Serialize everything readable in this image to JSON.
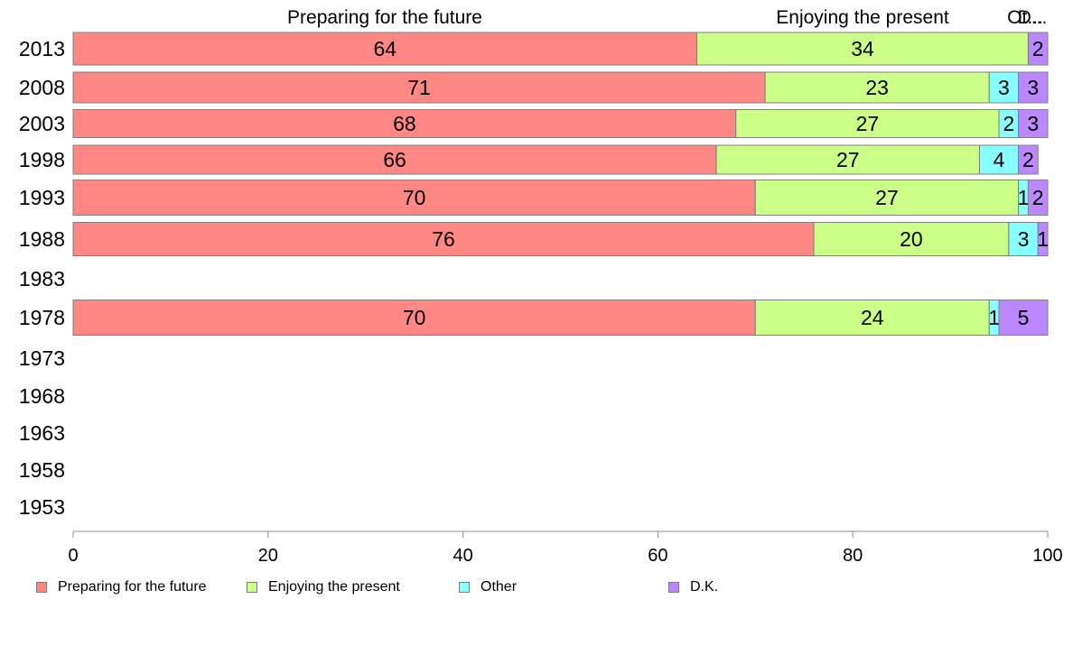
{
  "chart_data": {
    "type": "bar",
    "orientation": "horizontal",
    "stacked": true,
    "categories": [
      "2013",
      "2008",
      "2003",
      "1998",
      "1993",
      "1988",
      "1983",
      "1978",
      "1973",
      "1968",
      "1963",
      "1958",
      "1953"
    ],
    "series": [
      {
        "name": "Preparing for the future",
        "color": "#ff8884",
        "values": [
          64,
          71,
          68,
          66,
          70,
          76,
          null,
          70,
          null,
          null,
          null,
          null,
          null
        ]
      },
      {
        "name": "Enjoying the present",
        "color": "#ccff88",
        "values": [
          34,
          23,
          27,
          27,
          27,
          20,
          null,
          24,
          null,
          null,
          null,
          null,
          null
        ]
      },
      {
        "name": "Other",
        "color": "#88ffff",
        "values": [
          null,
          3,
          2,
          4,
          1,
          3,
          null,
          1,
          null,
          null,
          null,
          null,
          null
        ]
      },
      {
        "name": "D.K.",
        "color": "#bb88ff",
        "values": [
          2,
          3,
          3,
          2,
          2,
          1,
          null,
          5,
          null,
          null,
          null,
          null,
          null
        ]
      }
    ],
    "top_labels": [
      "Preparing for the future",
      "Enjoying the present",
      "Ot...",
      "D..."
    ],
    "xlim": [
      0,
      100
    ],
    "xticks": [
      "0",
      "20",
      "40",
      "60",
      "80",
      "100"
    ],
    "title": "",
    "xlabel": "",
    "ylabel": "",
    "grid": false,
    "legend_position": "bottom"
  }
}
